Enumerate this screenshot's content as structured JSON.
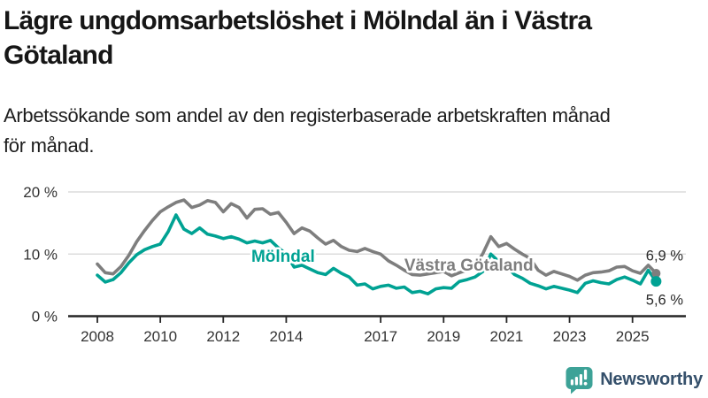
{
  "header": {
    "title": "Lägre ungdomsarbetslöshet i Mölndal än i Västra Götaland",
    "title_lines": [
      "Lägre ungdomsarbetslöshet i Mölndal än i Västra",
      "Götaland"
    ],
    "subtitle": "Arbetssökande som andel av den registerbaserade arbetskraften månad för månad.",
    "subtitle_lines": [
      "Arbetssökande som andel av den registerbaserade arbetskraften månad",
      "för månad."
    ]
  },
  "logo": {
    "text": "Newsworthy",
    "icon": "newsworthy-speech-bubble-chart-icon",
    "icon_color": "#3da297",
    "text_color": "#35506b"
  },
  "chart_data": {
    "type": "line",
    "title": "Lägre ungdomsarbetslöshet i Mölndal än i Västra Götaland",
    "subtitle": "Arbetssökande som andel av den registerbaserade arbetskraften månad för månad.",
    "x_unit": "year",
    "x_start": 2008,
    "x_step": 0.25,
    "xlim": [
      2008,
      2025.75
    ],
    "ylim": [
      0,
      21.5
    ],
    "grid": "horizontal",
    "legend": "inline-labels",
    "axis_color": "#262626",
    "grid_color": "#dcdcdc",
    "yticks": [
      {
        "v": 0,
        "label": "0 %"
      },
      {
        "v": 10,
        "label": "10 %"
      },
      {
        "v": 20,
        "label": "20 %"
      }
    ],
    "xticks": [
      {
        "v": 2008,
        "label": "2008"
      },
      {
        "v": 2010,
        "label": "2010"
      },
      {
        "v": 2012,
        "label": "2012"
      },
      {
        "v": 2014,
        "label": "2014"
      },
      {
        "v": 2017,
        "label": "2017"
      },
      {
        "v": 2019,
        "label": "2019"
      },
      {
        "v": 2021,
        "label": "2021"
      },
      {
        "v": 2023,
        "label": "2023"
      },
      {
        "v": 2025,
        "label": "2025"
      }
    ],
    "series": [
      {
        "id": "vastra-gotaland",
        "name": "Västra Götaland",
        "color": "#7e7e7e",
        "end_label": "6,9 %",
        "end_value": 6.9,
        "end_label_side": "above",
        "label_pos": {
          "x": 2019.8,
          "y": 8.2
        },
        "values": [
          8.4,
          7.0,
          6.8,
          8.0,
          9.8,
          12.0,
          13.8,
          15.4,
          16.8,
          17.6,
          18.3,
          18.7,
          17.5,
          17.9,
          18.6,
          18.3,
          16.8,
          18.1,
          17.5,
          15.8,
          17.2,
          17.3,
          16.4,
          16.7,
          15.1,
          13.3,
          14.2,
          13.7,
          12.6,
          11.6,
          12.2,
          11.2,
          10.6,
          10.4,
          10.9,
          10.4,
          10.0,
          8.9,
          8.2,
          7.4,
          6.7,
          6.6,
          6.8,
          7.0,
          7.2,
          6.5,
          7.0,
          7.4,
          8.0,
          10.1,
          12.8,
          11.2,
          11.7,
          10.8,
          10.0,
          9.3,
          7.4,
          6.6,
          7.2,
          6.8,
          6.4,
          5.8,
          6.6,
          7.0,
          7.1,
          7.3,
          7.9,
          8.0,
          7.3,
          6.9,
          8.2,
          6.9
        ]
      },
      {
        "id": "molndal",
        "name": "Mölndal",
        "color": "#00a293",
        "end_label": "5,6 %",
        "end_value": 5.6,
        "end_label_side": "below",
        "label_pos": {
          "x": 2013.9,
          "y": 9.6
        },
        "values": [
          6.6,
          5.5,
          5.9,
          7.0,
          8.6,
          9.9,
          10.7,
          11.2,
          11.6,
          13.6,
          16.3,
          14.0,
          13.3,
          14.2,
          13.2,
          12.9,
          12.5,
          12.8,
          12.4,
          11.8,
          12.1,
          11.8,
          12.2,
          11.0,
          10.0,
          7.9,
          8.2,
          7.6,
          7.0,
          6.7,
          7.7,
          6.9,
          6.3,
          5.0,
          5.2,
          4.4,
          4.8,
          5.0,
          4.5,
          4.7,
          3.8,
          4.0,
          3.6,
          4.4,
          4.6,
          4.5,
          5.6,
          5.9,
          6.3,
          7.2,
          10.0,
          8.8,
          8.0,
          6.7,
          6.1,
          5.3,
          4.9,
          4.4,
          4.8,
          4.5,
          4.2,
          3.8,
          5.3,
          5.7,
          5.4,
          5.2,
          5.9,
          6.3,
          5.8,
          5.2,
          7.4,
          5.6
        ]
      }
    ]
  }
}
